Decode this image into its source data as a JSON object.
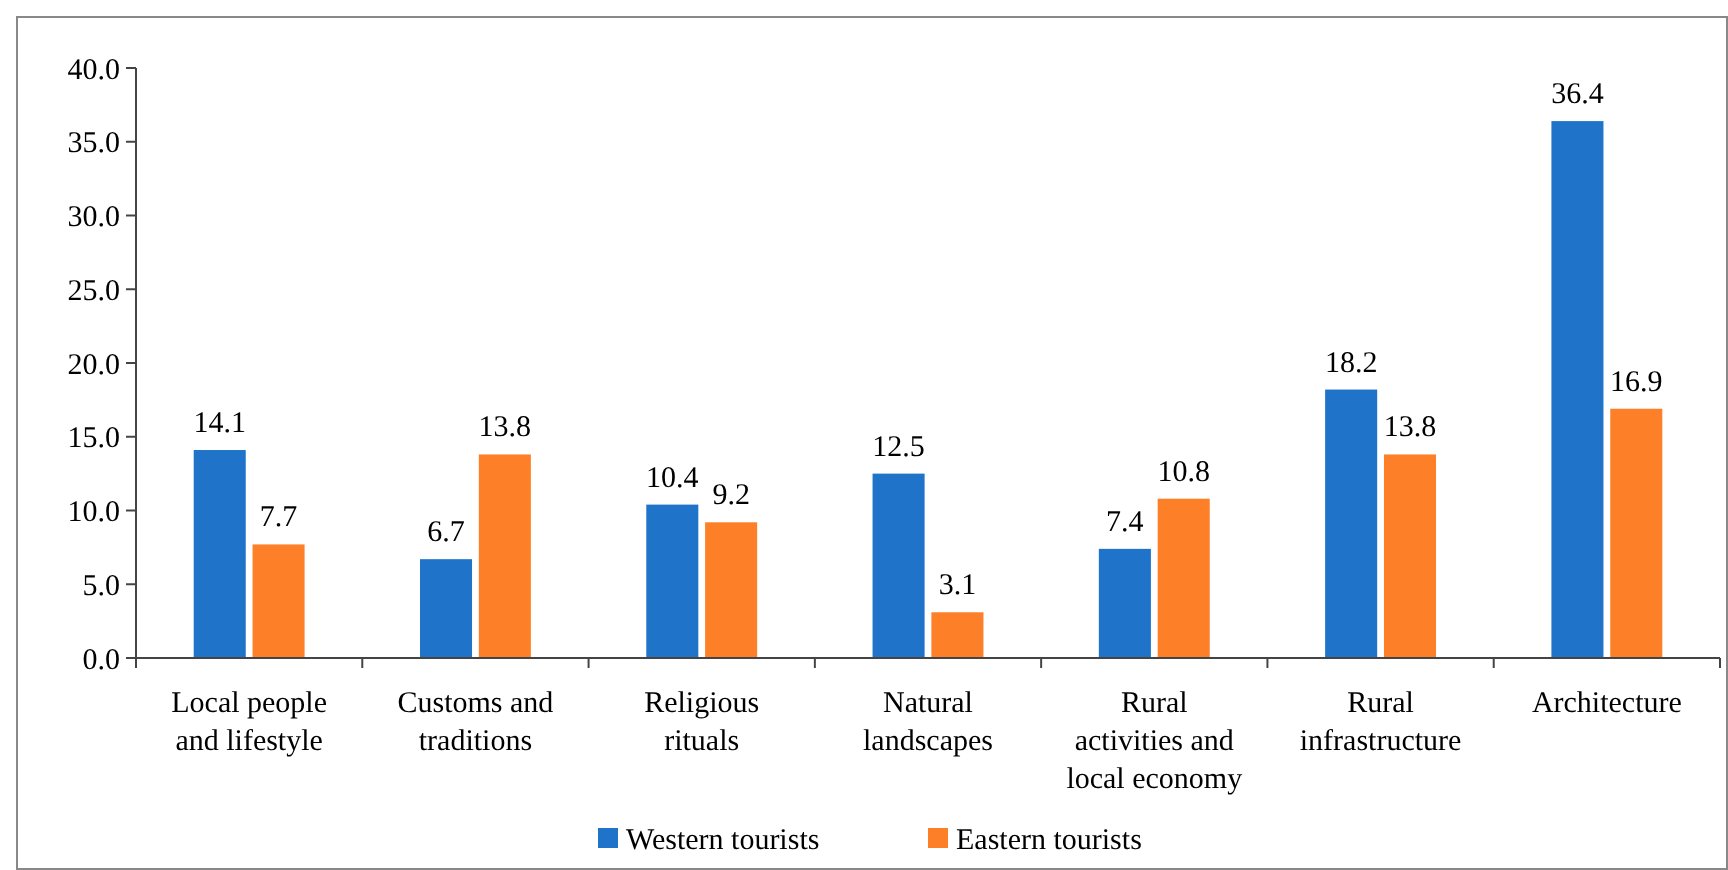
{
  "chart_data": {
    "type": "bar",
    "categories": [
      "Local people and lifestyle",
      "Customs and traditions",
      "Religious rituals",
      "Natural landscapes",
      "Rural activities and local economy",
      "Rural infrastructure",
      "Architecture"
    ],
    "series": [
      {
        "name": "Western tourists",
        "color": "#1f74c9",
        "values": [
          14.1,
          6.7,
          10.4,
          12.5,
          7.4,
          18.2,
          36.4
        ]
      },
      {
        "name": "Eastern tourists",
        "color": "#fd7f28",
        "values": [
          7.7,
          13.8,
          9.2,
          3.1,
          10.8,
          13.8,
          16.9
        ]
      }
    ],
    "ylim": [
      0,
      40
    ],
    "yticks": [
      {
        "value": 0,
        "label": "0.0"
      },
      {
        "value": 5,
        "label": "5.0"
      },
      {
        "value": 10,
        "label": "10.0"
      },
      {
        "value": 15,
        "label": "15.0"
      },
      {
        "value": 20,
        "label": "20.0"
      },
      {
        "value": 25,
        "label": "25.0"
      },
      {
        "value": 30,
        "label": "30.0"
      },
      {
        "value": 35,
        "label": "35.0"
      },
      {
        "value": 40,
        "label": "40.0"
      }
    ],
    "data_labels": true,
    "grid": false,
    "legend": "bottom"
  }
}
